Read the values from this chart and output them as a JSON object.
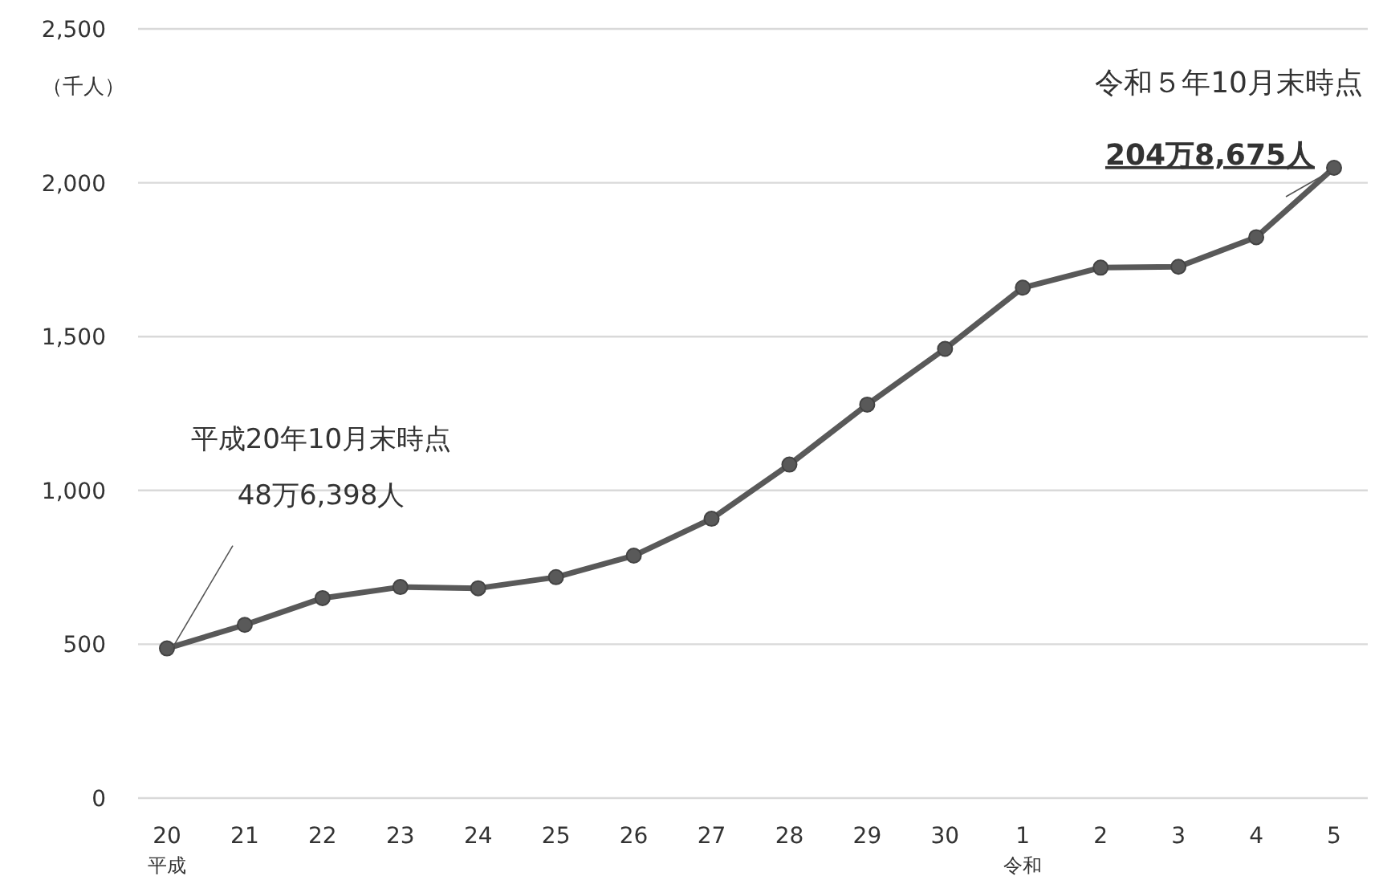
{
  "chart_data": {
    "type": "line",
    "ylabel": "（千人）",
    "categories": [
      "20$_{平成}$",
      "21",
      "22",
      "23",
      "24",
      "25",
      "26",
      "27",
      "28",
      "29",
      "30",
      "1$_{令和}$",
      "2",
      "3",
      "4",
      "5"
    ],
    "series": [
      {
        "color": "#595959",
        "values": [
          486.398,
          563,
          650,
          686,
          682,
          718,
          788,
          908,
          1084,
          1279,
          1460,
          1659,
          1724,
          1727,
          1823,
          2048.675
        ]
      }
    ],
    "ylim": [
      0,
      2500
    ],
    "yticks": [
      {
        "value": 0,
        "label": "0"
      },
      {
        "value": 500,
        "label": "500"
      },
      {
        "value": 1000,
        "label": "1,000"
      },
      {
        "value": 1500,
        "label": "1,500"
      },
      {
        "value": 2000,
        "label": "2,000"
      },
      {
        "value": 2500,
        "label": "2,500"
      }
    ],
    "grid": "y",
    "marker": "circle",
    "line_style": "solid",
    "annotations": [
      "平成20年10月末時点",
      {
        "text": "48万6,398人",
        "x": "20$_{平成}$",
        "y": 486.398
      },
      "令和５年10月末時点",
      {
        "text": "204万8,675人",
        "x": "5",
        "y": 2048.675
      }
    ]
  }
}
